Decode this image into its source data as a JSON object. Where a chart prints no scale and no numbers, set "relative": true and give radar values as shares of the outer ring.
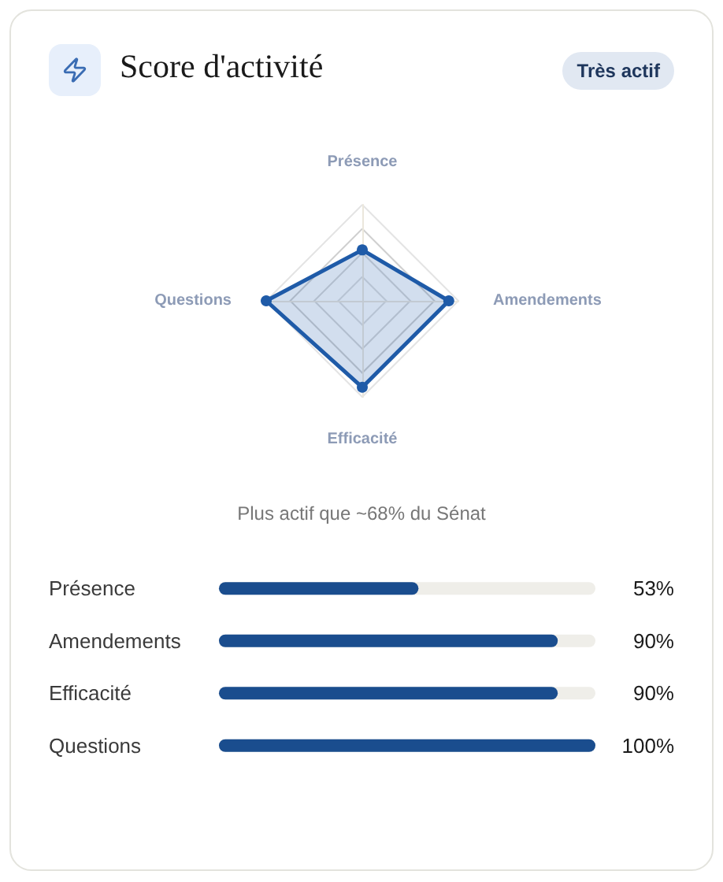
{
  "chart_data": [
    {
      "type": "radar",
      "title": "Score d'activité",
      "annotations": [
        "Très actif",
        "Plus actif que ~68% du Sénat"
      ],
      "categories": [
        "Présence",
        "Amendements",
        "Efficacité",
        "Questions"
      ],
      "relative": true,
      "values": [
        0.53,
        0.9,
        0.9,
        1
      ],
      "color": "#1f5ba8"
    },
    {
      "type": "bar",
      "orientation": "horizontal",
      "categories": [
        "Présence",
        "Amendements",
        "Efficacité",
        "Questions"
      ],
      "values": [
        53,
        90,
        90,
        100
      ],
      "value_labels": [
        "53%",
        "90%",
        "90%",
        "100%"
      ],
      "xlim": [
        0,
        100
      ],
      "color": "#1a4d8e",
      "tick_labels": "y"
    }
  ]
}
